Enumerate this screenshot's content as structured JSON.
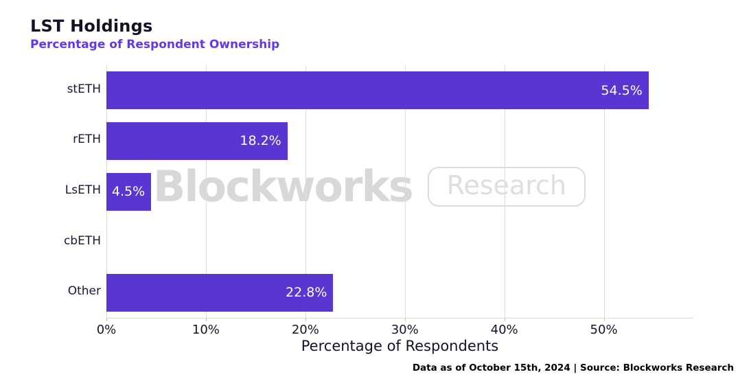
{
  "header": {
    "title": "LST Holdings",
    "subtitle": "Percentage of Respondent Ownership"
  },
  "chart_data": {
    "type": "bar",
    "orientation": "horizontal",
    "title": "LST Holdings",
    "subtitle": "Percentage of Respondent Ownership",
    "categories": [
      "stETH",
      "rETH",
      "LsETH",
      "cbETH",
      "Other"
    ],
    "values": [
      54.5,
      18.2,
      4.5,
      0,
      22.8
    ],
    "value_labels": [
      "54.5%",
      "18.2%",
      "4.5%",
      "",
      "22.8%"
    ],
    "xlabel": "Percentage of Respondents",
    "ylabel": "",
    "xlim": [
      0,
      59
    ],
    "x_ticks": [
      0,
      10,
      20,
      30,
      40,
      50
    ],
    "x_tick_labels": [
      "0%",
      "10%",
      "20%",
      "30%",
      "40%",
      "50%"
    ],
    "grid": "vertical-only",
    "legend": "none",
    "bar_color": "#5936d2",
    "value_label_color": "#ffffff"
  },
  "watermark": {
    "brand": "Blockworks",
    "badge": "Research"
  },
  "footer": {
    "text": "Data as of October 15th, 2024 | Source: Blockworks Research"
  },
  "colors": {
    "title_text": "#151226",
    "subtitle_text": "#6538e5",
    "bar": "#5936d2",
    "grid": "#dcdcdc",
    "axis_text": "#151226",
    "watermark_text": "#d8d8d8"
  }
}
